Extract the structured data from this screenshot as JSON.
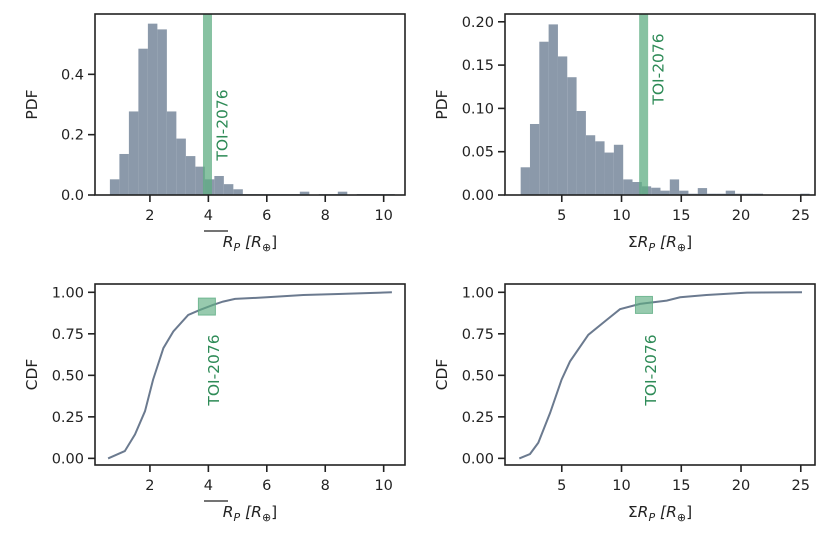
{
  "colors": {
    "bars": "#8593a5",
    "curve": "#6b7a8f",
    "highlight": "#2e8b57",
    "highlight_fill": "#5fae83"
  },
  "chart_data": [
    {
      "type": "bar",
      "panel": "top-left",
      "xlabel_base": "R",
      "xlabel_sub": "P",
      "xlabel_unit": "[R",
      "xlabel_unit_sub": "⊕",
      "xlabel_close": "]",
      "xlabel_overline": true,
      "xlabel_prefix": "",
      "ylabel": "PDF",
      "xlim": [
        0.12,
        10.73
      ],
      "ylim": [
        0,
        0.6
      ],
      "xticks": [
        2,
        4,
        6,
        8,
        10
      ],
      "xtick_labels": [
        "2",
        "4",
        "6",
        "8",
        "10"
      ],
      "yticks": [
        0,
        0.2,
        0.4
      ],
      "ytick_labels": [
        "0.0",
        "0.2",
        "0.4"
      ],
      "bin_start": 0.63,
      "bin_width": 0.325,
      "values": [
        0.052,
        0.136,
        0.277,
        0.485,
        0.568,
        0.549,
        0.277,
        0.187,
        0.129,
        0.094,
        0.052,
        0.063,
        0.036,
        0.019,
        0.003,
        0.003,
        0.003,
        0.003,
        0.003,
        0.003,
        0.011,
        0,
        0.003,
        0.003,
        0.011,
        0,
        0.003,
        0.003,
        0.003,
        0.003
      ],
      "highlight": {
        "x": 3.97,
        "label": "TOI-2076"
      }
    },
    {
      "type": "bar",
      "panel": "top-right",
      "xlabel_prefix": "Σ",
      "xlabel_base": "R",
      "xlabel_sub": "P",
      "xlabel_unit": "[R",
      "xlabel_unit_sub": "⊕",
      "xlabel_close": "]",
      "xlabel_overline": false,
      "ylabel": "PDF",
      "xlim": [
        0.25,
        26.19
      ],
      "ylim": [
        0,
        0.209
      ],
      "xticks": [
        5,
        10,
        15,
        20,
        25
      ],
      "xtick_labels": [
        "5",
        "10",
        "15",
        "20",
        "25"
      ],
      "yticks": [
        0,
        0.05,
        0.1,
        0.15,
        0.2
      ],
      "ytick_labels": [
        "0.00",
        "0.05",
        "0.10",
        "0.15",
        "0.20"
      ],
      "bin_start": 1.56,
      "bin_width": 0.78,
      "values": [
        0.032,
        0.082,
        0.177,
        0.197,
        0.16,
        0.136,
        0.097,
        0.069,
        0.062,
        0.049,
        0.058,
        0.018,
        0.015,
        0.01,
        0.0084,
        0.005,
        0.018,
        0.005,
        0.0015,
        0.008,
        0.0015,
        0.0015,
        0.005,
        0.0015,
        0.0015,
        0.0015,
        0,
        0,
        0,
        0,
        0.0015
      ],
      "highlight": {
        "x": 11.85,
        "label": "TOI-2076"
      }
    },
    {
      "type": "line",
      "panel": "bottom-left",
      "xlabel_base": "R",
      "xlabel_sub": "P",
      "xlabel_unit": "[R",
      "xlabel_unit_sub": "⊕",
      "xlabel_close": "]",
      "xlabel_overline": true,
      "xlabel_prefix": "",
      "ylabel": "CDF",
      "xlim": [
        0.12,
        10.73
      ],
      "ylim": [
        -0.04,
        1.05
      ],
      "xticks": [
        2,
        4,
        6,
        8,
        10
      ],
      "xtick_labels": [
        "2",
        "4",
        "6",
        "8",
        "10"
      ],
      "yticks": [
        0,
        0.25,
        0.5,
        0.75,
        1.0
      ],
      "ytick_labels": [
        "0.00",
        "0.25",
        "0.50",
        "0.75",
        "1.00"
      ],
      "x": [
        0.57,
        1.14,
        1.49,
        1.83,
        2.11,
        2.46,
        2.8,
        3.31,
        3.71,
        4.16,
        4.5,
        4.91,
        6.0,
        7.25,
        8.45,
        10.28
      ],
      "y": [
        0.0,
        0.044,
        0.144,
        0.284,
        0.474,
        0.664,
        0.764,
        0.864,
        0.894,
        0.924,
        0.944,
        0.96,
        0.97,
        0.984,
        0.99,
        1.0
      ],
      "highlight": {
        "x": 3.95,
        "y": 0.914,
        "label": "TOI-2076"
      }
    },
    {
      "type": "line",
      "panel": "bottom-right",
      "xlabel_prefix": "Σ",
      "xlabel_base": "R",
      "xlabel_sub": "P",
      "xlabel_unit": "[R",
      "xlabel_unit_sub": "⊕",
      "xlabel_close": "]",
      "xlabel_overline": false,
      "ylabel": "CDF",
      "xlim": [
        0.25,
        26.19
      ],
      "ylim": [
        -0.04,
        1.05
      ],
      "xticks": [
        5,
        10,
        15,
        20,
        25
      ],
      "xtick_labels": [
        "5",
        "10",
        "15",
        "20",
        "25"
      ],
      "yticks": [
        0,
        0.25,
        0.5,
        0.75,
        1.0
      ],
      "ytick_labels": [
        "0.00",
        "0.25",
        "0.50",
        "0.75",
        "1.00"
      ],
      "x": [
        1.45,
        2.34,
        3.04,
        4.02,
        4.99,
        5.69,
        7.22,
        8.76,
        9.87,
        11.55,
        13.78,
        14.9,
        17.1,
        20.5,
        25.1
      ],
      "y": [
        0.0,
        0.026,
        0.094,
        0.274,
        0.474,
        0.584,
        0.744,
        0.834,
        0.898,
        0.93,
        0.95,
        0.97,
        0.984,
        0.998,
        1.0
      ],
      "highlight": {
        "x": 11.88,
        "y": 0.924,
        "label": "TOI-2076"
      }
    }
  ]
}
